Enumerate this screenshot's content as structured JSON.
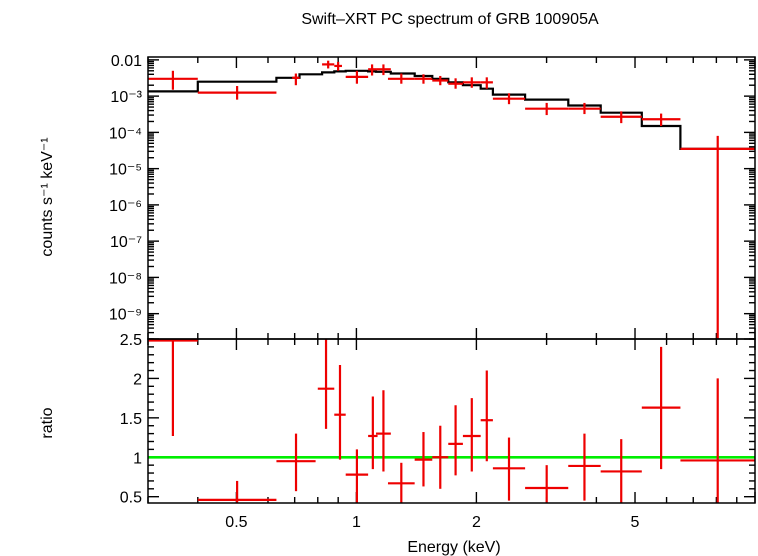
{
  "chart_data": [
    {
      "type": "step",
      "title": "Swift–XRT PC spectrum of GRB 100905A",
      "ylabel": "counts s⁻¹ keV⁻¹",
      "xscale": "log",
      "yscale": "log",
      "xlim": [
        0.3,
        10
      ],
      "ylim": [
        2e-10,
        0.012
      ],
      "ytick_labels": [
        {
          "v": 0.01,
          "label": "0.01"
        },
        {
          "v": 0.001,
          "label": "10⁻³"
        },
        {
          "v": 0.0001,
          "label": "10⁻⁴"
        },
        {
          "v": 1e-05,
          "label": "10⁻⁵"
        },
        {
          "v": 1e-06,
          "label": "10⁻⁶"
        },
        {
          "v": 1e-07,
          "label": "10⁻⁷"
        },
        {
          "v": 1e-08,
          "label": "10⁻⁸"
        },
        {
          "v": 1e-09,
          "label": "10⁻⁹"
        }
      ],
      "data_color": "#ee0000",
      "model_color": "#000000",
      "data": [
        {
          "xlo": 0.3,
          "xhi": 0.4,
          "y": 0.003,
          "ylo": 0.0015,
          "yhi": 0.005
        },
        {
          "xlo": 0.4,
          "xhi": 0.63,
          "y": 0.00125,
          "ylo": 0.0008,
          "yhi": 0.0019
        },
        {
          "xlo": 0.69,
          "xhi": 0.72,
          "y": 0.0032,
          "ylo": 0.002,
          "yhi": 0.0042
        },
        {
          "xlo": 0.82,
          "xhi": 0.88,
          "y": 0.0075,
          "ylo": 0.0058,
          "yhi": 0.0095
        },
        {
          "xlo": 0.88,
          "xhi": 0.92,
          "y": 0.0068,
          "ylo": 0.005,
          "yhi": 0.0088
        },
        {
          "xlo": 0.94,
          "xhi": 1.07,
          "y": 0.0034,
          "ylo": 0.0022,
          "yhi": 0.005
        },
        {
          "xlo": 1.07,
          "xhi": 1.12,
          "y": 0.0055,
          "ylo": 0.0037,
          "yhi": 0.0075
        },
        {
          "xlo": 1.12,
          "xhi": 1.22,
          "y": 0.0055,
          "ylo": 0.0038,
          "yhi": 0.0075
        },
        {
          "xlo": 1.2,
          "xhi": 1.4,
          "y": 0.003,
          "ylo": 0.0022,
          "yhi": 0.0042
        },
        {
          "xlo": 1.4,
          "xhi": 1.55,
          "y": 0.003,
          "ylo": 0.0022,
          "yhi": 0.004
        },
        {
          "xlo": 1.55,
          "xhi": 1.7,
          "y": 0.0027,
          "ylo": 0.002,
          "yhi": 0.0036
        },
        {
          "xlo": 1.7,
          "xhi": 1.85,
          "y": 0.0022,
          "ylo": 0.0016,
          "yhi": 0.0031
        },
        {
          "xlo": 1.85,
          "xhi": 2.05,
          "y": 0.0024,
          "ylo": 0.0017,
          "yhi": 0.0033
        },
        {
          "xlo": 2.05,
          "xhi": 2.2,
          "y": 0.0024,
          "ylo": 0.0016,
          "yhi": 0.0033
        },
        {
          "xlo": 2.2,
          "xhi": 2.65,
          "y": 0.00085,
          "ylo": 0.0006,
          "yhi": 0.0012
        },
        {
          "xlo": 2.65,
          "xhi": 3.4,
          "y": 0.00045,
          "ylo": 0.0003,
          "yhi": 0.00065
        },
        {
          "xlo": 3.4,
          "xhi": 4.1,
          "y": 0.00045,
          "ylo": 0.00032,
          "yhi": 0.00065
        },
        {
          "xlo": 4.1,
          "xhi": 5.2,
          "y": 0.00027,
          "ylo": 0.00018,
          "yhi": 0.00038
        },
        {
          "xlo": 5.2,
          "xhi": 6.5,
          "y": 0.00023,
          "ylo": 0.00015,
          "yhi": 0.00033
        },
        {
          "xlo": 6.5,
          "xhi": 10.0,
          "y": 3.5e-05,
          "ylo": 2e-10,
          "yhi": 8e-05
        }
      ],
      "model": [
        {
          "xlo": 0.3,
          "xhi": 0.4,
          "y": 0.00135
        },
        {
          "xlo": 0.4,
          "xhi": 0.63,
          "y": 0.0025
        },
        {
          "xlo": 0.63,
          "xhi": 0.72,
          "y": 0.0032
        },
        {
          "xlo": 0.72,
          "xhi": 0.82,
          "y": 0.004
        },
        {
          "xlo": 0.82,
          "xhi": 0.88,
          "y": 0.0045
        },
        {
          "xlo": 0.88,
          "xhi": 0.94,
          "y": 0.0048
        },
        {
          "xlo": 0.94,
          "xhi": 1.07,
          "y": 0.005
        },
        {
          "xlo": 1.07,
          "xhi": 1.12,
          "y": 0.0048
        },
        {
          "xlo": 1.12,
          "xhi": 1.22,
          "y": 0.0047
        },
        {
          "xlo": 1.22,
          "xhi": 1.4,
          "y": 0.0042
        },
        {
          "xlo": 1.4,
          "xhi": 1.55,
          "y": 0.0036
        },
        {
          "xlo": 1.55,
          "xhi": 1.7,
          "y": 0.003
        },
        {
          "xlo": 1.7,
          "xhi": 1.85,
          "y": 0.0024
        },
        {
          "xlo": 1.85,
          "xhi": 2.05,
          "y": 0.002
        },
        {
          "xlo": 2.05,
          "xhi": 2.2,
          "y": 0.0016
        },
        {
          "xlo": 2.2,
          "xhi": 2.65,
          "y": 0.0011
        },
        {
          "xlo": 2.65,
          "xhi": 3.4,
          "y": 0.0008
        },
        {
          "xlo": 3.4,
          "xhi": 4.1,
          "y": 0.00055
        },
        {
          "xlo": 4.1,
          "xhi": 5.2,
          "y": 0.00035
        },
        {
          "xlo": 5.2,
          "xhi": 6.5,
          "y": 0.00015
        },
        {
          "xlo": 6.5,
          "xhi": 10.0,
          "y": 3.5e-05
        }
      ]
    },
    {
      "type": "scatter",
      "xlabel": "Energy (keV)",
      "ylabel": "ratio",
      "xscale": "log",
      "yscale": "linear",
      "xlim": [
        0.3,
        10
      ],
      "ylim": [
        0.42,
        2.5
      ],
      "xtick_labels": [
        {
          "v": 0.5,
          "label": "0.5"
        },
        {
          "v": 1,
          "label": "1"
        },
        {
          "v": 2,
          "label": "2"
        },
        {
          "v": 5,
          "label": "5"
        }
      ],
      "ytick_labels": [
        {
          "v": 0.5,
          "label": "0.5"
        },
        {
          "v": 1,
          "label": "1"
        },
        {
          "v": 1.5,
          "label": "1.5"
        },
        {
          "v": 2,
          "label": "2"
        },
        {
          "v": 2.5,
          "label": "2.5"
        }
      ],
      "reference_line": 1,
      "reference_color": "#00ee00",
      "data_color": "#ee0000",
      "data": [
        {
          "xlo": 0.3,
          "xhi": 0.4,
          "y": 2.48,
          "ylo": 1.27,
          "yhi": 2.55
        },
        {
          "xlo": 0.4,
          "xhi": 0.63,
          "y": 0.46,
          "ylo": 0.4,
          "yhi": 0.7
        },
        {
          "xlo": 0.63,
          "xhi": 0.79,
          "y": 0.95,
          "ylo": 0.57,
          "yhi": 1.3
        },
        {
          "xlo": 0.8,
          "xhi": 0.88,
          "y": 1.87,
          "ylo": 1.36,
          "yhi": 2.5
        },
        {
          "xlo": 0.88,
          "xhi": 0.94,
          "y": 1.54,
          "ylo": 0.97,
          "yhi": 2.17
        },
        {
          "xlo": 0.94,
          "xhi": 1.07,
          "y": 0.78,
          "ylo": 0.4,
          "yhi": 1.1
        },
        {
          "xlo": 1.07,
          "xhi": 1.13,
          "y": 1.27,
          "ylo": 0.85,
          "yhi": 1.77
        },
        {
          "xlo": 1.12,
          "xhi": 1.22,
          "y": 1.3,
          "ylo": 0.82,
          "yhi": 1.85
        },
        {
          "xlo": 1.2,
          "xhi": 1.4,
          "y": 0.67,
          "ylo": 0.42,
          "yhi": 0.93
        },
        {
          "xlo": 1.4,
          "xhi": 1.55,
          "y": 0.97,
          "ylo": 0.63,
          "yhi": 1.32
        },
        {
          "xlo": 1.55,
          "xhi": 1.7,
          "y": 1.0,
          "ylo": 0.6,
          "yhi": 1.4
        },
        {
          "xlo": 1.7,
          "xhi": 1.85,
          "y": 1.17,
          "ylo": 0.77,
          "yhi": 1.66
        },
        {
          "xlo": 1.85,
          "xhi": 2.05,
          "y": 1.27,
          "ylo": 0.82,
          "yhi": 1.75
        },
        {
          "xlo": 2.05,
          "xhi": 2.2,
          "y": 1.47,
          "ylo": 0.95,
          "yhi": 2.1
        },
        {
          "xlo": 2.2,
          "xhi": 2.65,
          "y": 0.86,
          "ylo": 0.45,
          "yhi": 1.25
        },
        {
          "xlo": 2.65,
          "xhi": 3.4,
          "y": 0.61,
          "ylo": 0.4,
          "yhi": 0.9
        },
        {
          "xlo": 3.4,
          "xhi": 4.1,
          "y": 0.89,
          "ylo": 0.45,
          "yhi": 1.3
        },
        {
          "xlo": 4.1,
          "xhi": 5.2,
          "y": 0.82,
          "ylo": 0.4,
          "yhi": 1.23
        },
        {
          "xlo": 5.2,
          "xhi": 6.5,
          "y": 1.63,
          "ylo": 0.85,
          "yhi": 2.4
        },
        {
          "xlo": 6.5,
          "xhi": 10.0,
          "y": 0.96,
          "ylo": 0.4,
          "yhi": 2.0
        }
      ]
    }
  ]
}
